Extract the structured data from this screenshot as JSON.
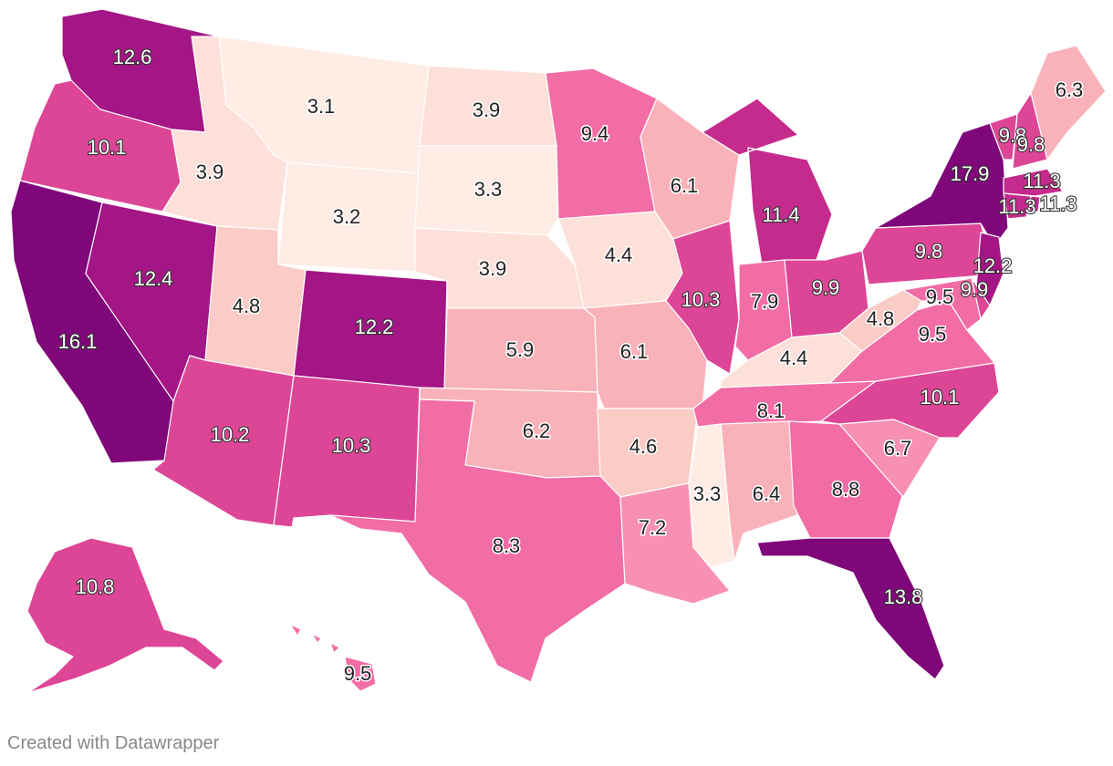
{
  "credit": "Created with Datawrapper",
  "color_scale": [
    "#ffece4",
    "#fde0d9",
    "#fbcbc6",
    "#fab2ba",
    "#f890b2",
    "#f26ca6",
    "#dd4596",
    "#c42b8d",
    "#a41585",
    "#7f077a"
  ],
  "states": {
    "WA": "12.6",
    "OR": "10.1",
    "CA": "16.1",
    "NV": "12.4",
    "ID": "3.9",
    "MT": "3.1",
    "WY": "3.2",
    "UT": "4.8",
    "AZ": "10.2",
    "CO": "12.2",
    "NM": "10.3",
    "ND": "3.9",
    "SD": "3.3",
    "NE": "3.9",
    "KS": "5.9",
    "OK": "6.2",
    "TX": "8.3",
    "MN": "9.4",
    "IA": "4.4",
    "MO": "6.1",
    "AR": "4.6",
    "LA": "7.2",
    "WI": "6.1",
    "IL": "10.3",
    "MI": "11.4",
    "IN": "7.9",
    "OH": "9.9",
    "KY": "4.4",
    "TN": "8.1",
    "MS": "3.3",
    "AL": "6.4",
    "GA": "8.8",
    "FL": "13.8",
    "SC": "6.7",
    "NC": "10.1",
    "VA": "9.5",
    "WV": "4.8",
    "PA": "9.8",
    "NY": "17.9",
    "NJ": "12.2",
    "DE": "9.9",
    "MD": "9.5",
    "MA": "11.3",
    "VT": "9.8",
    "NH": "9.8",
    "ME": "6.3",
    "CT": "11.3",
    "RI": "11.3",
    "AK": "10.8",
    "HI": "9.5"
  }
}
